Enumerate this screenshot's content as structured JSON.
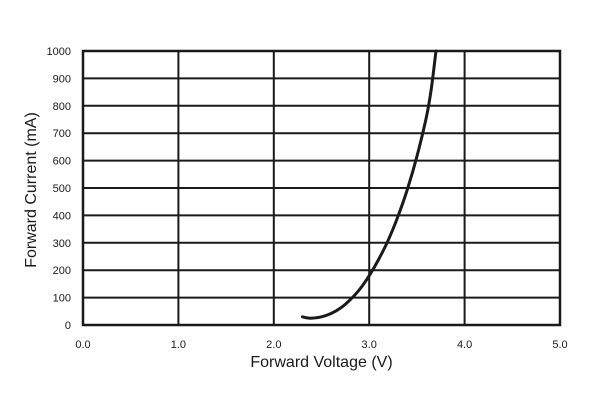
{
  "chart_data": {
    "type": "line",
    "title": "",
    "xlabel": "Forward Voltage (V)",
    "ylabel": "Forward Current (mA)",
    "xlim": [
      0.0,
      5.0
    ],
    "ylim": [
      0,
      1000
    ],
    "x_ticks": [
      "0.0",
      "1.0",
      "2.0",
      "3.0",
      "4.0",
      "5.0"
    ],
    "y_ticks": [
      "0",
      "100",
      "200",
      "300",
      "400",
      "500",
      "600",
      "700",
      "800",
      "900",
      "1000"
    ],
    "grid": true,
    "legend": "none",
    "line_color": "#1a1a1a",
    "series": [
      {
        "x": [
          2.3,
          2.35,
          2.4,
          2.5,
          2.6,
          2.7,
          2.8,
          2.9,
          3.0,
          3.1,
          3.2,
          3.3,
          3.4,
          3.5,
          3.6,
          3.65,
          3.7
        ],
        "values": [
          30,
          26,
          25,
          30,
          42,
          62,
          92,
          130,
          180,
          240,
          310,
          395,
          495,
          615,
          760,
          860,
          1000
        ]
      }
    ]
  }
}
